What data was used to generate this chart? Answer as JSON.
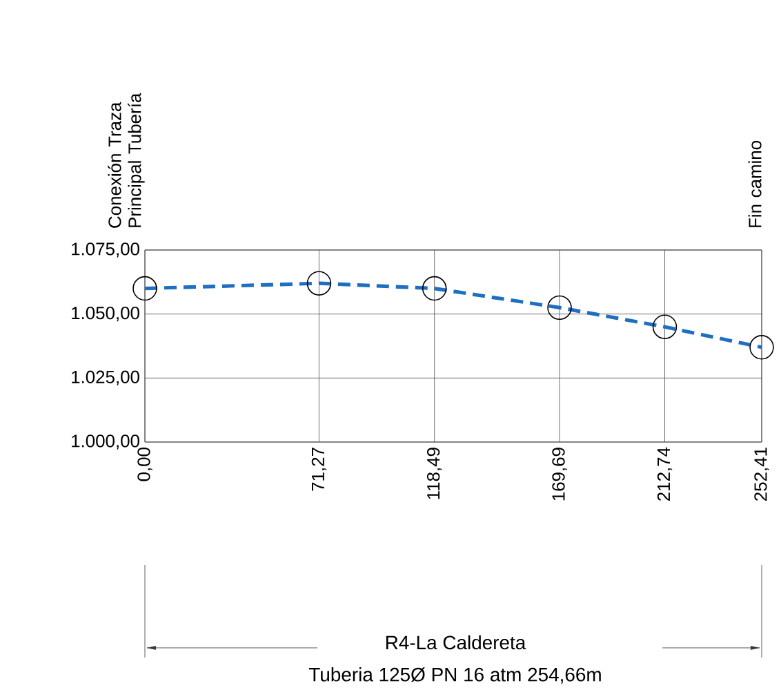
{
  "chart_data": {
    "type": "line",
    "annotations": [
      "Conexión Traza Principal Tubería",
      "Fin camino",
      "R4-La Caldereta",
      "Tuberia 125Ø PN 16 atm 254,66m"
    ],
    "x": [
      0,
      71.27,
      118.49,
      169.69,
      212.74,
      252.41
    ],
    "series": [
      {
        "color": "#1f6fc0",
        "values": [
          1060,
          1062,
          1060,
          1052.5,
          1045,
          1037
        ]
      }
    ],
    "xlim": [
      0,
      252.41
    ],
    "ylim": [
      1000,
      1075
    ],
    "xticks": [
      {
        "value": 0,
        "label": "0,00"
      },
      {
        "value": 71.27,
        "label": "71,27"
      },
      {
        "value": 118.49,
        "label": "118,49"
      },
      {
        "value": 169.69,
        "label": "169,69"
      },
      {
        "value": 212.74,
        "label": "212,74"
      },
      {
        "value": 252.41,
        "label": "252,41"
      }
    ],
    "yticks": [
      {
        "value": 1000,
        "label": "1.000,00"
      },
      {
        "value": 1025,
        "label": "1.025,00"
      },
      {
        "value": 1050,
        "label": "1.050,00"
      },
      {
        "value": 1075,
        "label": "1.075,00"
      }
    ],
    "grid": true,
    "marker": "circle",
    "line_style": "dashed"
  }
}
